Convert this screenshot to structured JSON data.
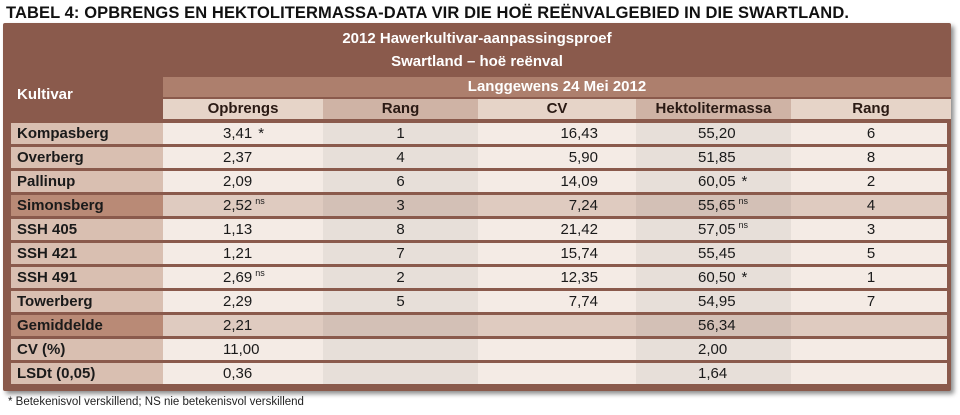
{
  "caption": "TABEL 4: OPBRENGS EN HEKTOLITERMASSA-DATA VIR DIE HOË REËNVALGEBIED IN DIE SWARTLAND.",
  "table": {
    "title": "2012 Hawerkultivar-aanpassingsproef",
    "subtitle": "Swartland – hoë reënval",
    "row_header": "Kultivar",
    "site": "Langgewens 24 Mei 2012",
    "columns": [
      "Opbrengs",
      "Rang",
      "CV",
      "Hektolitermassa",
      "Rang"
    ],
    "rows": [
      {
        "name": "Kompasberg",
        "opbrengs": "3,41",
        "opbrengs_mark": "*",
        "rang": "1",
        "cv": "16,43",
        "hlm": "55,20",
        "hlm_mark": "",
        "rang2": "6",
        "tone": "light"
      },
      {
        "name": "Overberg",
        "opbrengs": "2,37",
        "opbrengs_mark": "",
        "rang": "4",
        "cv": "5,90",
        "hlm": "51,85",
        "hlm_mark": "",
        "rang2": "8",
        "tone": "light"
      },
      {
        "name": "Pallinup",
        "opbrengs": "2,09",
        "opbrengs_mark": "",
        "rang": "6",
        "cv": "14,09",
        "hlm": "60,05",
        "hlm_mark": "*",
        "rang2": "2",
        "tone": "light"
      },
      {
        "name": "Simonsberg",
        "opbrengs": "2,52",
        "opbrengs_mark": "ns",
        "rang": "3",
        "cv": "7,24",
        "hlm": "55,65",
        "hlm_mark": "ns",
        "rang2": "4",
        "tone": "dark"
      },
      {
        "name": "SSH 405",
        "opbrengs": "1,13",
        "opbrengs_mark": "",
        "rang": "8",
        "cv": "21,42",
        "hlm": "57,05",
        "hlm_mark": "ns",
        "rang2": "3",
        "tone": "light"
      },
      {
        "name": "SSH 421",
        "opbrengs": "1,21",
        "opbrengs_mark": "",
        "rang": "7",
        "cv": "15,74",
        "hlm": "55,45",
        "hlm_mark": "",
        "rang2": "5",
        "tone": "light"
      },
      {
        "name": "SSH 491",
        "opbrengs": "2,69",
        "opbrengs_mark": "ns",
        "rang": "2",
        "cv": "12,35",
        "hlm": "60,50",
        "hlm_mark": "*",
        "rang2": "1",
        "tone": "light"
      },
      {
        "name": "Towerberg",
        "opbrengs": "2,29",
        "opbrengs_mark": "",
        "rang": "5",
        "cv": "7,74",
        "hlm": "54,95",
        "hlm_mark": "",
        "rang2": "7",
        "tone": "light"
      },
      {
        "name": "Gemiddelde",
        "opbrengs": "2,21",
        "opbrengs_mark": "",
        "rang": "",
        "cv": "",
        "hlm": "56,34",
        "hlm_mark": "",
        "rang2": "",
        "tone": "dark"
      },
      {
        "name": "CV (%)",
        "opbrengs": "11,00",
        "opbrengs_mark": "",
        "rang": "",
        "cv": "",
        "hlm": "2,00",
        "hlm_mark": "",
        "rang2": "",
        "tone": "light"
      },
      {
        "name": "LSDt (0,05)",
        "opbrengs": "0,36",
        "opbrengs_mark": "",
        "rang": "",
        "cv": "",
        "hlm": "1,64",
        "hlm_mark": "",
        "rang2": "",
        "tone": "light"
      }
    ]
  },
  "footnote": "* Betekenisvol verskillend; NS nie betekenisvol verskillend"
}
